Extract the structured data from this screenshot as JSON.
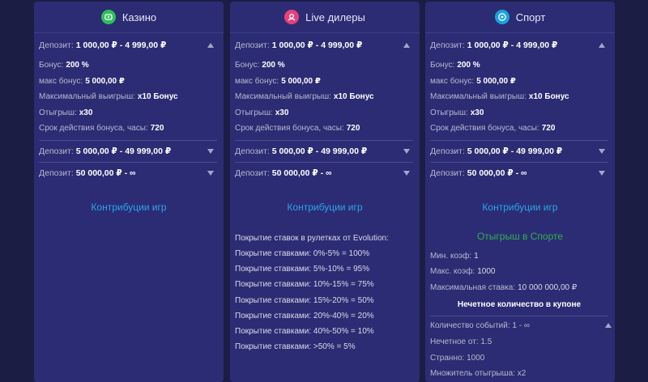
{
  "columns": [
    {
      "id": "casino",
      "title": "Казино",
      "icon": "casino-icon",
      "icon_color": "#2fbf5a",
      "tiers": [
        {
          "label": "Депозит:",
          "value": "1 000,00 ₽ - 4 999,00 ₽",
          "expanded": true,
          "details": [
            {
              "label": "Бонус:",
              "value": "200 %"
            },
            {
              "label": "макс бонус:",
              "value": "5 000,00 ₽"
            },
            {
              "label": "Максимальный выигрыш:",
              "value": "x10 Бонус"
            },
            {
              "label": "Отыгрыш:",
              "value": "x30"
            },
            {
              "label": "Срок действия бонуса, часы:",
              "value": "720"
            }
          ]
        },
        {
          "label": "Депозит:",
          "value": "5 000,00 ₽ - 49 999,00 ₽"
        },
        {
          "label": "Депозит:",
          "value": "50 000,00 ₽ - ∞"
        }
      ],
      "contrib_label": "Контрибуции игр"
    },
    {
      "id": "live",
      "title": "Live дилеры",
      "icon": "live-dealer-icon",
      "icon_color": "#e8407a",
      "tiers": [
        {
          "label": "Депозит:",
          "value": "1 000,00 ₽ - 4 999,00 ₽",
          "expanded": true,
          "details": [
            {
              "label": "Бонус:",
              "value": "200 %"
            },
            {
              "label": "макс бонус:",
              "value": "5 000,00 ₽"
            },
            {
              "label": "Максимальный выигрыш:",
              "value": "x10 Бонус"
            },
            {
              "label": "Отыгрыш:",
              "value": "x30"
            },
            {
              "label": "Срок действия бонуса, часы:",
              "value": "720"
            }
          ]
        },
        {
          "label": "Депозит:",
          "value": "5 000,00 ₽ - 49 999,00 ₽"
        },
        {
          "label": "Депозит:",
          "value": "50 000,00 ₽ - ∞"
        }
      ],
      "contrib_label": "Контрибуции игр",
      "coverage_title": "Покрытие ставок в рулетках от Evolution:",
      "coverage": [
        "Покрытие ставками: 0%-5% = 100%",
        "Покрытие ставками: 5%-10% = 95%",
        "Покрытие ставками: 10%-15% = 75%",
        "Покрытие ставками: 15%-20% = 50%",
        "Покрытие ставками: 20%-40% = 20%",
        "Покрытие ставками: 40%-50% = 10%",
        "Покрытие ставками: >50% = 5%"
      ]
    },
    {
      "id": "sport",
      "title": "Спорт",
      "icon": "soccer-ball-icon",
      "icon_color": "#19a3e0",
      "tiers": [
        {
          "label": "Депозит:",
          "value": "1 000,00 ₽ - 4 999,00 ₽",
          "expanded": true,
          "details": [
            {
              "label": "Бонус:",
              "value": "200 %"
            },
            {
              "label": "макс бонус:",
              "value": "5 000,00 ₽"
            },
            {
              "label": "Максимальный выигрыш:",
              "value": "x10 Бонус"
            },
            {
              "label": "Отыгрыш:",
              "value": "x30"
            },
            {
              "label": "Срок действия бонуса, часы:",
              "value": "720"
            }
          ]
        },
        {
          "label": "Депозит:",
          "value": "5 000,00 ₽ - 49 999,00 ₽"
        },
        {
          "label": "Депозит:",
          "value": "50 000,00 ₽ - ∞"
        }
      ],
      "contrib_label": "Контрибуции игр",
      "wager_title": "Отыгрыш в Спорте",
      "wager_lines": [
        {
          "label": "Мин. коэф:",
          "value": "1"
        },
        {
          "label": "Макс. коэф:",
          "value": "1000"
        },
        {
          "label": "Максимальная ставка:",
          "value": "10 000 000,00 ₽"
        }
      ],
      "odd_title": "Нечетное количество в купоне",
      "odd_lines": [
        "Количество событий: 1 - ∞",
        "Нечетное от: 1.5",
        "Странно: 1000",
        "Множитель отыгрыша: x2"
      ]
    }
  ]
}
